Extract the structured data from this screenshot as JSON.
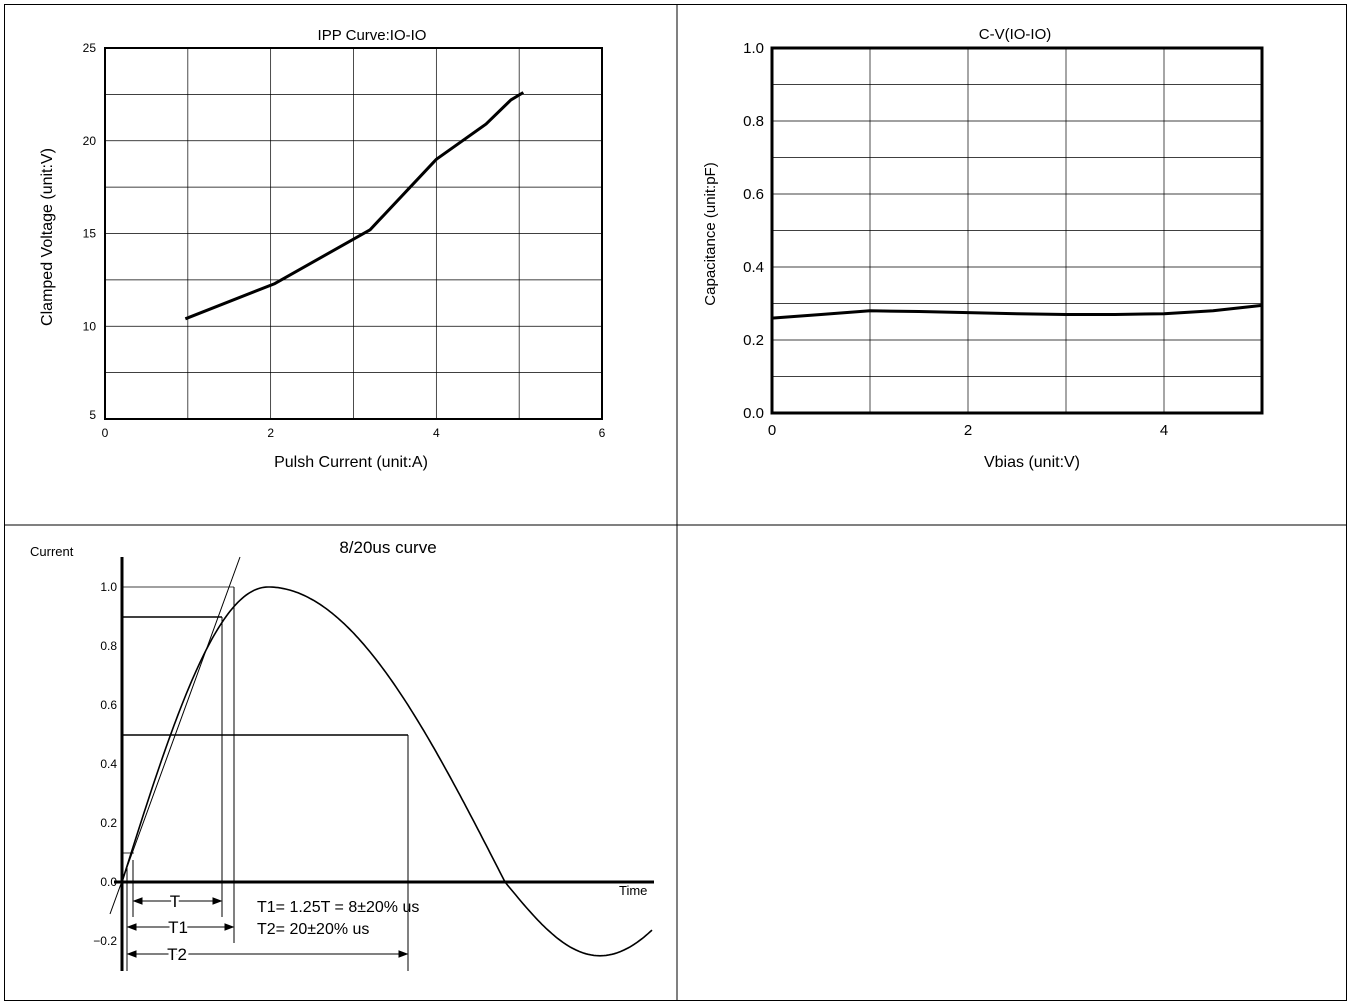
{
  "chart_data": [
    {
      "type": "line",
      "title": "IPP Curve:IO-IO",
      "xlabel": "Pulsh Current (unit:A)",
      "ylabel": "Clamped Voltage (unit:V)",
      "xlim": [
        0,
        6
      ],
      "ylim": [
        5,
        25
      ],
      "xticks": [
        "0",
        "2",
        "4",
        "6"
      ],
      "yticks": [
        "5",
        "10",
        "15",
        "20",
        "25"
      ],
      "grid": true,
      "series": [
        {
          "x": [
            0.97,
            2.05,
            3.2,
            4.0,
            4.6,
            4.9,
            5.05
          ],
          "y": [
            10.4,
            12.3,
            15.2,
            19.0,
            20.9,
            22.2,
            22.6
          ]
        }
      ]
    },
    {
      "type": "line",
      "title": "C-V(IO-IO)",
      "xlabel": "Vbias (unit:V)",
      "ylabel": "Capacitance (unit:pF)",
      "xlim": [
        0,
        5
      ],
      "ylim": [
        0.0,
        1.0
      ],
      "xticks": [
        "0",
        "2",
        "4"
      ],
      "yticks": [
        "0.0",
        "0.2",
        "0.4",
        "0.6",
        "0.8",
        "1.0"
      ],
      "grid": true,
      "series": [
        {
          "x": [
            0,
            0.5,
            1.0,
            1.5,
            2.0,
            2.5,
            3.0,
            3.5,
            4.0,
            4.5,
            5.0
          ],
          "y": [
            0.26,
            0.27,
            0.28,
            0.278,
            0.275,
            0.272,
            0.27,
            0.27,
            0.272,
            0.28,
            0.295
          ]
        }
      ]
    },
    {
      "type": "line",
      "title": "8/20us curve",
      "xlabel": "Time",
      "ylabel": "Current",
      "ylim": [
        -0.2,
        1.0
      ],
      "yticks": [
        "−0.2",
        "0.0",
        "0.2",
        "0.4",
        "0.6",
        "0.8",
        "1.0"
      ],
      "grid": false,
      "labels": {
        "t": "T",
        "t1": "T1",
        "t2": "T2",
        "formula1": "T1= 1.25T = 8±20% us",
        "formula2": "T2= 20±20% us"
      }
    }
  ]
}
